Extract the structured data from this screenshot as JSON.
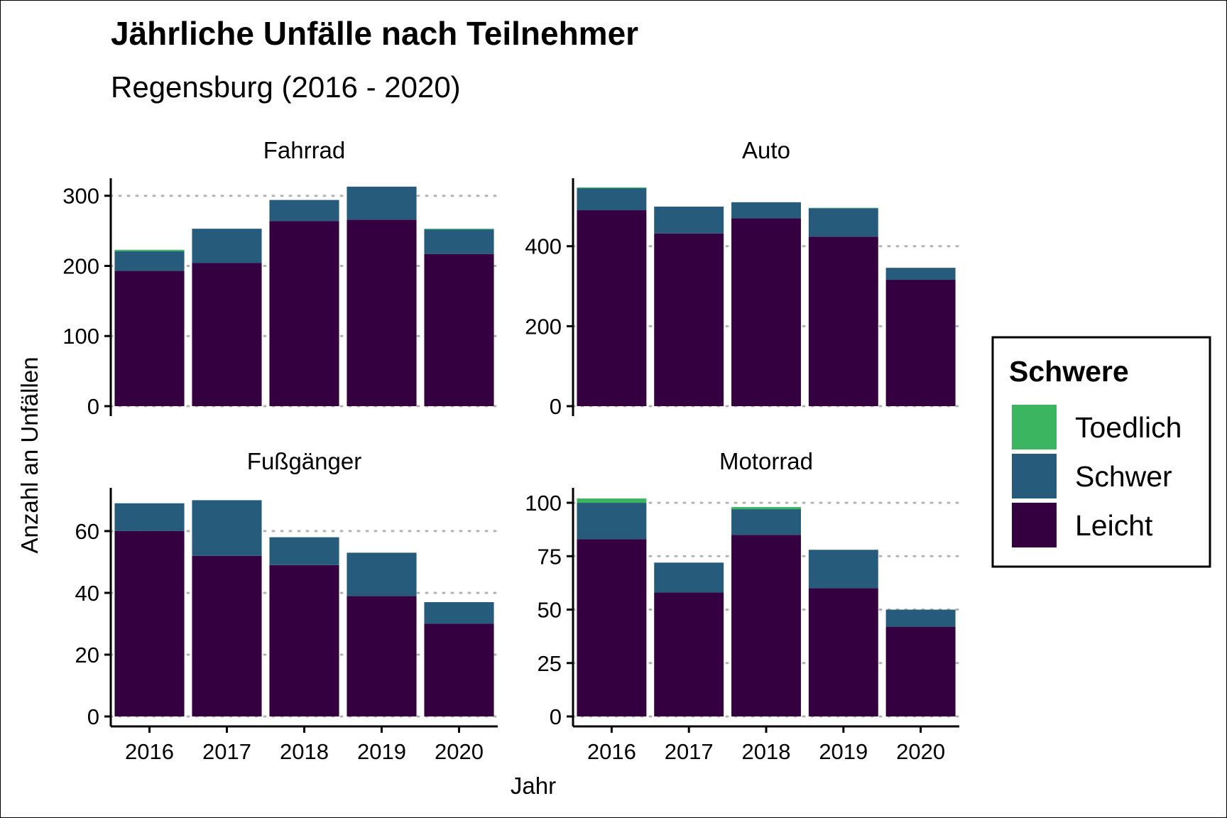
{
  "chart_data": {
    "type": "bar",
    "stacked": true,
    "title": "Jährliche Unfälle nach Teilnehmer",
    "subtitle": "Regensburg (2016 - 2020)",
    "xlabel": "Jahr",
    "ylabel": "Anzahl an Unfällen",
    "categories": [
      "2016",
      "2017",
      "2018",
      "2019",
      "2020"
    ],
    "legend": {
      "title": "Schwere",
      "position": "right",
      "entries": [
        "Toedlich",
        "Schwer",
        "Leicht"
      ]
    },
    "colors": {
      "Leicht": "#35003f",
      "Schwer": "#275b7c",
      "Toedlich": "#3bb560"
    },
    "grid": "horizontal dotted",
    "panels": [
      {
        "name": "Fahrrad",
        "ylim": [
          0,
          325
        ],
        "yticks": [
          0,
          100,
          200,
          300
        ],
        "series": [
          {
            "name": "Leicht",
            "values": [
              193,
              204,
              264,
              266,
              217
            ]
          },
          {
            "name": "Schwer",
            "values": [
              28,
              49,
              30,
              47,
              35
            ]
          },
          {
            "name": "Toedlich",
            "values": [
              2,
              0,
              0,
              0,
              1
            ]
          }
        ]
      },
      {
        "name": "Auto",
        "ylim": [
          0,
          570
        ],
        "yticks": [
          0,
          200,
          400
        ],
        "series": [
          {
            "name": "Leicht",
            "values": [
              490,
              432,
              470,
              424,
              316
            ]
          },
          {
            "name": "Schwer",
            "values": [
              55,
              67,
              40,
              71,
              30
            ]
          },
          {
            "name": "Toedlich",
            "values": [
              2,
              0,
              0,
              1,
              0
            ]
          }
        ]
      },
      {
        "name": "Fußgänger",
        "ylim": [
          0,
          74
        ],
        "yticks": [
          0,
          20,
          40,
          60
        ],
        "series": [
          {
            "name": "Leicht",
            "values": [
              60,
              52,
              49,
              39,
              30
            ]
          },
          {
            "name": "Schwer",
            "values": [
              9,
              18,
              9,
              14,
              7
            ]
          },
          {
            "name": "Toedlich",
            "values": [
              0,
              0,
              0,
              0,
              0
            ]
          }
        ]
      },
      {
        "name": "Motorrad",
        "ylim": [
          0,
          107
        ],
        "yticks": [
          0,
          25,
          50,
          75,
          100
        ],
        "series": [
          {
            "name": "Leicht",
            "values": [
              83,
              58,
              85,
              60,
              42
            ]
          },
          {
            "name": "Schwer",
            "values": [
              17,
              14,
              12,
              18,
              8
            ]
          },
          {
            "name": "Toedlich",
            "values": [
              2,
              0,
              1,
              0,
              0
            ]
          }
        ]
      }
    ]
  }
}
